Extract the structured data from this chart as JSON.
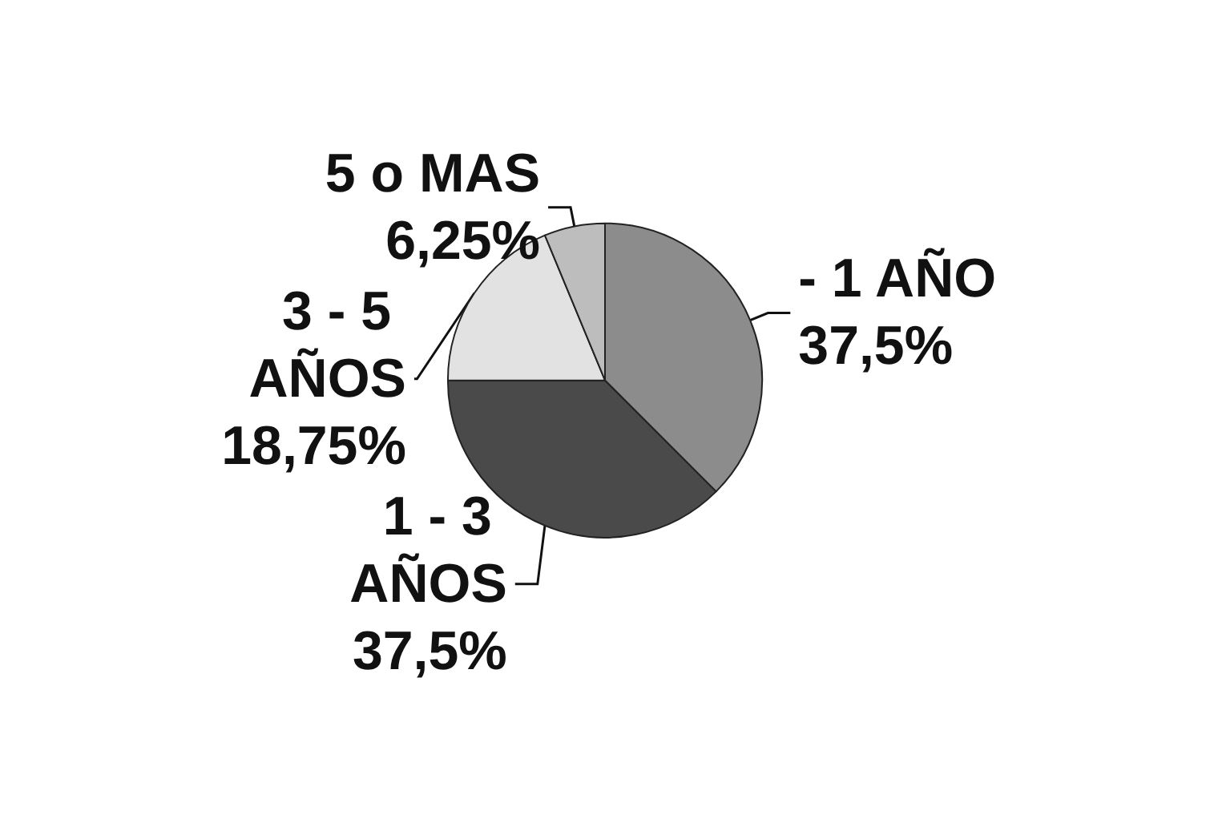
{
  "chart_data": {
    "type": "pie",
    "categories": [
      "- 1 AÑO",
      "1 - 3 AÑOS",
      "3 - 5 AÑOS",
      "5 o MAS"
    ],
    "values": [
      37.5,
      37.5,
      18.75,
      6.25
    ],
    "value_labels": [
      "37,5%",
      "37,5%",
      "18,75%",
      "6,25%"
    ],
    "colors": [
      "#8c8c8c",
      "#4a4a4a",
      "#e2e2e2",
      "#bdbdbd"
    ],
    "legend": false
  }
}
